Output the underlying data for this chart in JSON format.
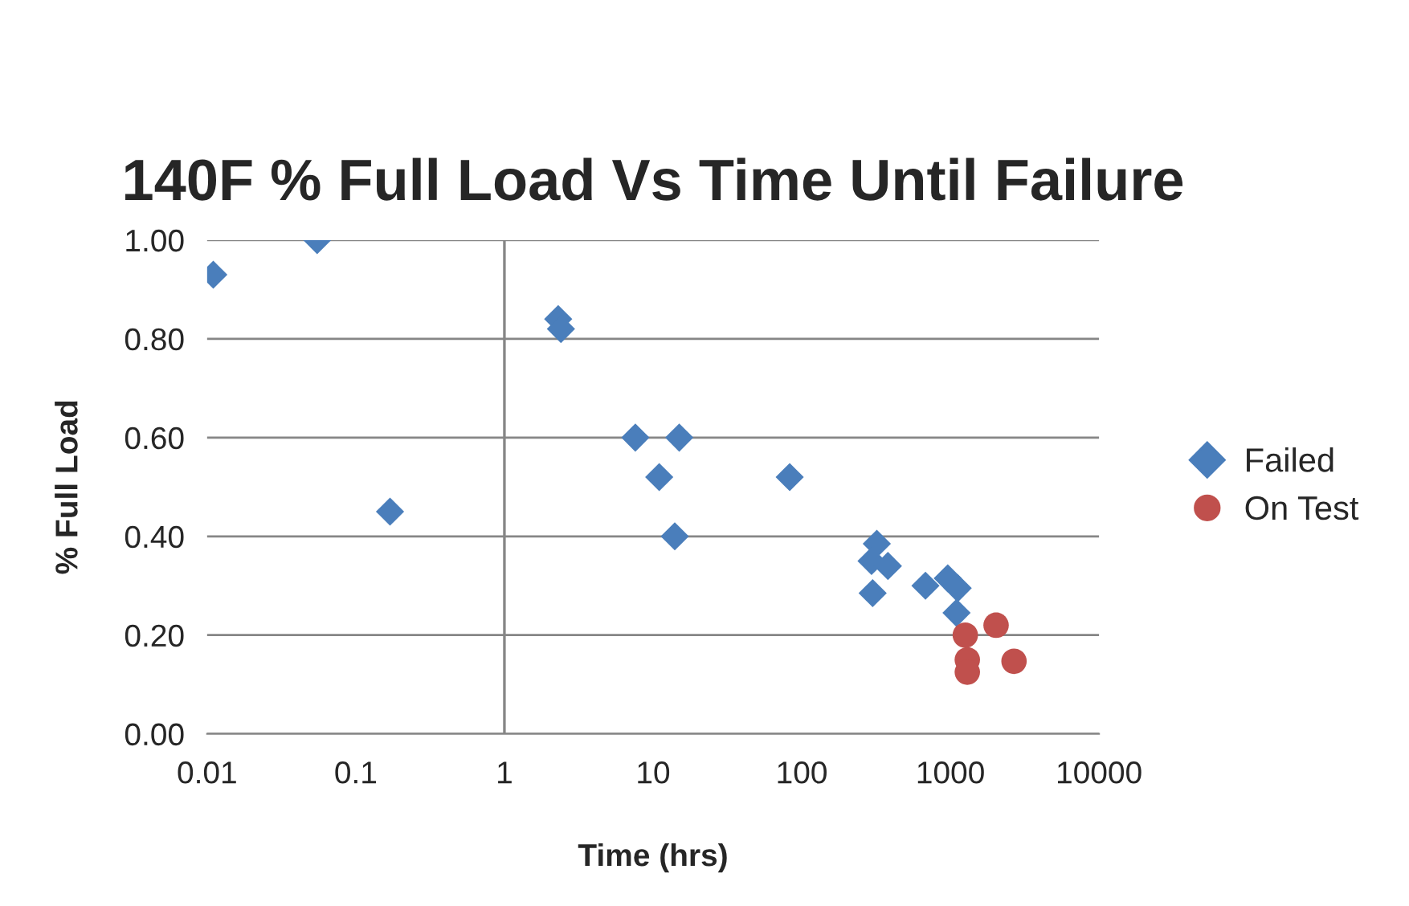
{
  "chart_data": {
    "type": "scatter",
    "title": "140F % Full Load Vs Time Until Failure",
    "xlabel": "Time (hrs)",
    "ylabel": "% Full Load",
    "log": "x",
    "xlim": [
      0.01,
      10000
    ],
    "xticks": [
      0.01,
      0.1,
      1,
      10,
      100,
      1000,
      10000
    ],
    "ylim": [
      0,
      1
    ],
    "yticks": [
      {
        "value": 0,
        "label": "0.00"
      },
      {
        "value": 0.2,
        "label": "0.20"
      },
      {
        "value": 0.4,
        "label": "0.40"
      },
      {
        "value": 0.6,
        "label": "0.60"
      },
      {
        "value": 0.8,
        "label": "0.80"
      },
      {
        "value": 1,
        "label": "1.00"
      }
    ],
    "grid": "y",
    "legend": "right",
    "ref_lines": [
      {
        "axis": "x",
        "value": 1,
        "color": "#868686"
      }
    ],
    "series": [
      {
        "name": "Failed",
        "color": "#4a7ebb",
        "marker": "diamond",
        "x": [
          0.011,
          0.055,
          0.17,
          2.3,
          2.4,
          7.6,
          11,
          15,
          14,
          83,
          320,
          295,
          380,
          300,
          680,
          960,
          1120,
          1100
        ],
        "values": [
          0.93,
          1.0,
          0.45,
          0.84,
          0.82,
          0.6,
          0.52,
          0.6,
          0.4,
          0.52,
          0.385,
          0.35,
          0.34,
          0.285,
          0.3,
          0.315,
          0.295,
          0.245
        ]
      },
      {
        "name": "On Test",
        "color": "#c0504d",
        "marker": "circle",
        "x": [
          1260,
          2030,
          1300,
          1300,
          2680
        ],
        "values": [
          0.2,
          0.22,
          0.15,
          0.125,
          0.147
        ]
      }
    ]
  }
}
